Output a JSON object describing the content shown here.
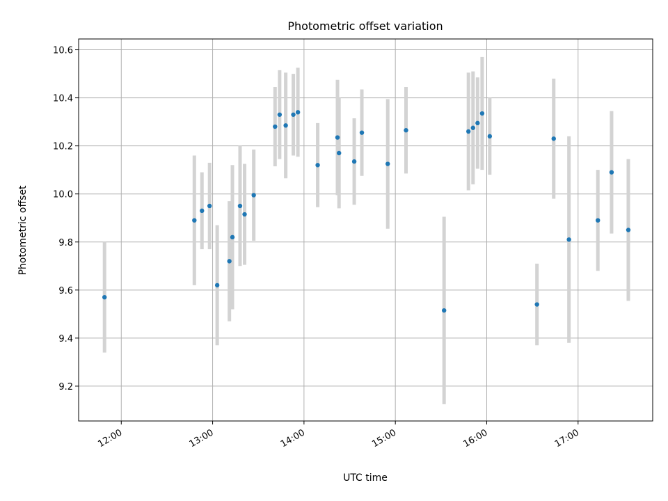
{
  "chart_data": {
    "type": "scatter",
    "title": "Photometric offset variation",
    "xlabel": "UTC time",
    "ylabel": "Photometric offset",
    "xlim": [
      "11:32",
      "17:49"
    ],
    "ylim": [
      9.055,
      10.645
    ],
    "x_ticks": [
      "12:00",
      "13:00",
      "14:00",
      "15:00",
      "16:00",
      "17:00"
    ],
    "y_ticks": [
      "9.2",
      "9.4",
      "9.6",
      "9.8",
      "10.0",
      "10.2",
      "10.4",
      "10.6"
    ],
    "grid": true,
    "point_color": "#1f77b4",
    "errorbar_color": "#d3d3d3",
    "series": [
      {
        "points": [
          {
            "x": "11:49",
            "y": 9.57,
            "err": 0.23
          },
          {
            "x": "12:48",
            "y": 9.89,
            "err": 0.27
          },
          {
            "x": "12:53",
            "y": 9.93,
            "err": 0.16
          },
          {
            "x": "12:58",
            "y": 9.95,
            "err": 0.18
          },
          {
            "x": "13:03",
            "y": 9.62,
            "err": 0.25
          },
          {
            "x": "13:11",
            "y": 9.72,
            "err": 0.25
          },
          {
            "x": "13:13",
            "y": 9.82,
            "err": 0.3
          },
          {
            "x": "13:18",
            "y": 9.95,
            "err": 0.25
          },
          {
            "x": "13:21",
            "y": 9.915,
            "err": 0.21
          },
          {
            "x": "13:27",
            "y": 9.995,
            "err": 0.19
          },
          {
            "x": "13:41",
            "y": 10.28,
            "err": 0.165
          },
          {
            "x": "13:44",
            "y": 10.33,
            "err": 0.185
          },
          {
            "x": "13:48",
            "y": 10.285,
            "err": 0.22
          },
          {
            "x": "13:53",
            "y": 10.33,
            "err": 0.17
          },
          {
            "x": "13:56",
            "y": 10.34,
            "err": 0.185
          },
          {
            "x": "14:09",
            "y": 10.12,
            "err": 0.175
          },
          {
            "x": "14:22",
            "y": 10.235,
            "err": 0.24
          },
          {
            "x": "14:23",
            "y": 10.17,
            "err": 0.23
          },
          {
            "x": "14:33",
            "y": 10.135,
            "err": 0.18
          },
          {
            "x": "14:38",
            "y": 10.255,
            "err": 0.18
          },
          {
            "x": "14:55",
            "y": 10.125,
            "err": 0.27
          },
          {
            "x": "15:07",
            "y": 10.265,
            "err": 0.18
          },
          {
            "x": "15:32",
            "y": 9.515,
            "err": 0.39
          },
          {
            "x": "15:48",
            "y": 10.26,
            "err": 0.245
          },
          {
            "x": "15:51",
            "y": 10.275,
            "err": 0.235
          },
          {
            "x": "15:54",
            "y": 10.295,
            "err": 0.19
          },
          {
            "x": "15:57",
            "y": 10.335,
            "err": 0.235
          },
          {
            "x": "16:02",
            "y": 10.24,
            "err": 0.16
          },
          {
            "x": "16:33",
            "y": 9.54,
            "err": 0.17
          },
          {
            "x": "16:44",
            "y": 10.23,
            "err": 0.25
          },
          {
            "x": "16:54",
            "y": 9.81,
            "err": 0.43
          },
          {
            "x": "17:13",
            "y": 9.89,
            "err": 0.21
          },
          {
            "x": "17:22",
            "y": 10.09,
            "err": 0.255
          },
          {
            "x": "17:33",
            "y": 9.85,
            "err": 0.295
          }
        ]
      }
    ]
  }
}
